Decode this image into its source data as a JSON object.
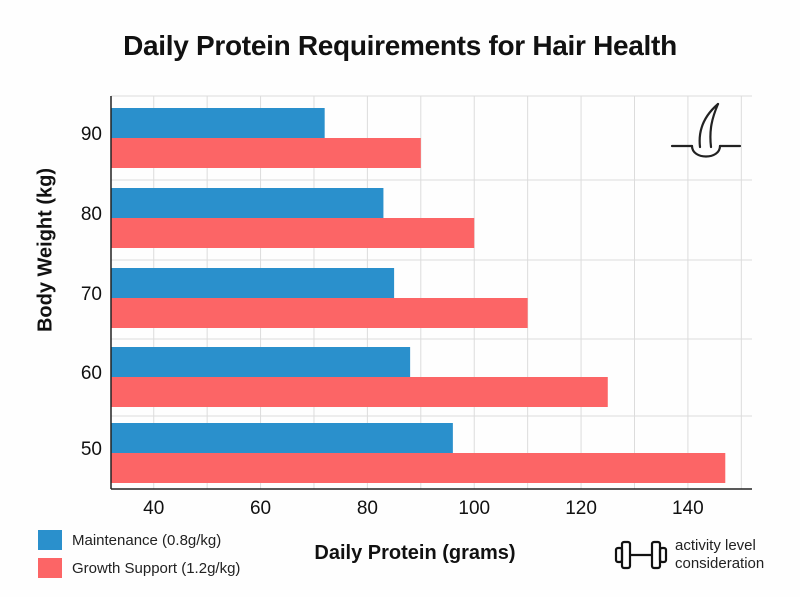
{
  "chart_data": {
    "type": "bar",
    "orientation": "horizontal",
    "title": "Daily Protein Requirements for Hair Health",
    "xlabel": "Daily Protein (grams)",
    "ylabel": "Body Weight (kg)",
    "categories": [
      "90",
      "80",
      "70",
      "60",
      "50"
    ],
    "series": [
      {
        "name": "Maintenance (0.8g/kg)",
        "color": "#2a90cc",
        "values": [
          72,
          83,
          85,
          88,
          96
        ]
      },
      {
        "name": "Growth Support (1.2g/kg)",
        "color": "#fc6566",
        "values": [
          90,
          100,
          110,
          125,
          147
        ]
      }
    ],
    "xlim": [
      32,
      152
    ],
    "xticks": [
      "40",
      "60",
      "80",
      "100",
      "120",
      "140"
    ],
    "grid": true,
    "legend_position": "bottom-left",
    "annotation": {
      "icon": "hair-follicle-icon",
      "position": "top-right"
    },
    "note": {
      "icon": "dumbbell-icon",
      "lines": [
        "activity level",
        "consideration"
      ]
    }
  }
}
